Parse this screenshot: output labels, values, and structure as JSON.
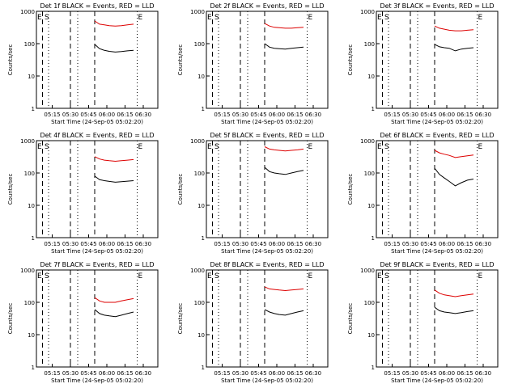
{
  "page": {
    "xlabel": "Start Time (24-Sep-05 05:02:20)",
    "ylabel": "Counts/sec"
  },
  "colors": {
    "events": "#000000",
    "lld": "#dd0000",
    "axis": "#000000"
  },
  "common": {
    "yticks": [
      1,
      10,
      100,
      1000
    ],
    "ytick_labels": [
      "1",
      "10",
      "100",
      "1000"
    ],
    "ylim": [
      1,
      1000
    ],
    "xlim_minutes": [
      0,
      100
    ],
    "xticks": [
      {
        "t": 13,
        "label": "05:15"
      },
      {
        "t": 28,
        "label": "05:30"
      },
      {
        "t": 43,
        "label": "05:45"
      },
      {
        "t": 58,
        "label": "06:00"
      },
      {
        "t": 73,
        "label": "06:15"
      },
      {
        "t": 88,
        "label": "06:30"
      }
    ],
    "dashed_lines_t": [
      5,
      28,
      48
    ],
    "dotted_lines_t": [
      10,
      34,
      83
    ]
  },
  "chart_data": [
    {
      "type": "line",
      "title": "Det 1f BLACK = Events, RED = LLD",
      "markers": [
        "E",
        "S",
        "E"
      ],
      "series": [
        {
          "name": "Events",
          "segments": [
            {
              "x": [
                48,
                52,
                56,
                60,
                65,
                70,
                75,
                80
              ],
              "y": [
                95,
                70,
                62,
                58,
                55,
                57,
                60,
                62
              ]
            }
          ]
        },
        {
          "name": "LLD",
          "segments": [
            {
              "x": [
                48,
                52,
                56,
                60,
                65,
                70,
                75,
                80
              ],
              "y": [
                500,
                400,
                380,
                360,
                350,
                360,
                380,
                400
              ]
            }
          ]
        }
      ]
    },
    {
      "type": "line",
      "title": "Det 2f BLACK = Events, RED = LLD",
      "markers": [
        "E",
        "S",
        "E"
      ],
      "series": [
        {
          "name": "Events",
          "segments": [
            {
              "x": [
                48,
                52,
                56,
                60,
                65,
                70,
                75,
                80
              ],
              "y": [
                100,
                78,
                72,
                70,
                68,
                72,
                75,
                78
              ]
            }
          ]
        },
        {
          "name": "LLD",
          "segments": [
            {
              "x": [
                48,
                52,
                56,
                60,
                65,
                70,
                75,
                80
              ],
              "y": [
                420,
                350,
                320,
                310,
                300,
                300,
                310,
                320
              ]
            }
          ]
        }
      ]
    },
    {
      "type": "line",
      "title": "Det 3f BLACK = Events, RED = LLD",
      "markers": [
        "E",
        "S",
        "E"
      ],
      "series": [
        {
          "name": "Events",
          "segments": [
            {
              "x": [
                48,
                52,
                56,
                60,
                65,
                70,
                75,
                80
              ],
              "y": [
                95,
                80,
                75,
                72,
                60,
                68,
                72,
                75
              ]
            }
          ]
        },
        {
          "name": "LLD",
          "segments": [
            {
              "x": [
                48,
                52,
                56,
                60,
                65,
                70,
                75,
                80
              ],
              "y": [
                350,
                300,
                280,
                260,
                250,
                250,
                260,
                270
              ]
            }
          ]
        }
      ]
    },
    {
      "type": "line",
      "title": "Det 4f BLACK = Events, RED = LLD",
      "markers": [
        "E",
        "S",
        "E"
      ],
      "series": [
        {
          "name": "Events",
          "segments": [
            {
              "x": [
                48,
                52,
                56,
                60,
                65,
                70,
                75,
                80
              ],
              "y": [
                80,
                62,
                58,
                55,
                52,
                54,
                56,
                58
              ]
            }
          ]
        },
        {
          "name": "LLD",
          "segments": [
            {
              "x": [
                48,
                52,
                56,
                60,
                65,
                70,
                75,
                80
              ],
              "y": [
                320,
                270,
                250,
                240,
                230,
                240,
                250,
                260
              ]
            }
          ]
        }
      ]
    },
    {
      "type": "line",
      "title": "Det 5f BLACK = Events, RED = LLD",
      "markers": [
        "E",
        "S",
        "E"
      ],
      "series": [
        {
          "name": "Events",
          "segments": [
            {
              "x": [
                48,
                52,
                56,
                60,
                65,
                70,
                75,
                80
              ],
              "y": [
                150,
                110,
                100,
                95,
                90,
                100,
                110,
                120
              ]
            }
          ]
        },
        {
          "name": "LLD",
          "segments": [
            {
              "x": [
                48,
                52,
                56,
                60,
                65,
                70,
                75,
                80
              ],
              "y": [
                650,
                550,
                520,
                500,
                480,
                500,
                520,
                550
              ]
            }
          ]
        }
      ]
    },
    {
      "type": "line",
      "title": "Det 6f BLACK = Events, RED = LLD",
      "markers": [
        "E",
        "S",
        "E"
      ],
      "series": [
        {
          "name": "Events",
          "segments": [
            {
              "x": [
                48,
                52,
                56,
                60,
                65,
                70,
                75,
                80
              ],
              "y": [
                140,
                90,
                70,
                55,
                40,
                50,
                60,
                65
              ]
            }
          ]
        },
        {
          "name": "LLD",
          "segments": [
            {
              "x": [
                48,
                52,
                56,
                60,
                65,
                70,
                75,
                80
              ],
              "y": [
                500,
                420,
                380,
                350,
                300,
                320,
                340,
                360
              ]
            }
          ]
        }
      ]
    },
    {
      "type": "line",
      "title": "Det 7f BLACK = Events, RED = LLD",
      "markers": [
        "E",
        "S",
        "E"
      ],
      "series": [
        {
          "name": "Events",
          "segments": [
            {
              "x": [
                48,
                52,
                56,
                60,
                65,
                70,
                75,
                80
              ],
              "y": [
                60,
                45,
                40,
                38,
                36,
                40,
                45,
                50
              ]
            }
          ]
        },
        {
          "name": "LLD",
          "segments": [
            {
              "x": [
                48,
                52,
                56,
                60,
                65,
                70,
                75,
                80
              ],
              "y": [
                140,
                110,
                100,
                100,
                100,
                110,
                120,
                130
              ]
            }
          ]
        }
      ]
    },
    {
      "type": "line",
      "title": "Det 8f BLACK = Events, RED = LLD",
      "markers": [
        "E",
        "S",
        "E"
      ],
      "series": [
        {
          "name": "Events",
          "segments": [
            {
              "x": [
                48,
                52,
                56,
                60,
                65,
                70,
                75,
                80
              ],
              "y": [
                60,
                50,
                45,
                42,
                40,
                45,
                50,
                55
              ]
            }
          ]
        },
        {
          "name": "LLD",
          "segments": [
            {
              "x": [
                48,
                52,
                56,
                60,
                65,
                70,
                75,
                80
              ],
              "y": [
                300,
                260,
                250,
                240,
                230,
                240,
                250,
                260
              ]
            }
          ]
        }
      ]
    },
    {
      "type": "line",
      "title": "Det 9f BLACK = Events, RED = LLD",
      "markers": [
        "E",
        "S",
        "E"
      ],
      "series": [
        {
          "name": "Events",
          "segments": [
            {
              "x": [
                48,
                52,
                56,
                60,
                65,
                70,
                75,
                80
              ],
              "y": [
                70,
                55,
                50,
                48,
                45,
                48,
                52,
                55
              ]
            }
          ]
        },
        {
          "name": "LLD",
          "segments": [
            {
              "x": [
                48,
                52,
                56,
                60,
                65,
                70,
                75,
                80
              ],
              "y": [
                240,
                190,
                170,
                160,
                150,
                160,
                170,
                180
              ]
            }
          ]
        }
      ]
    }
  ]
}
